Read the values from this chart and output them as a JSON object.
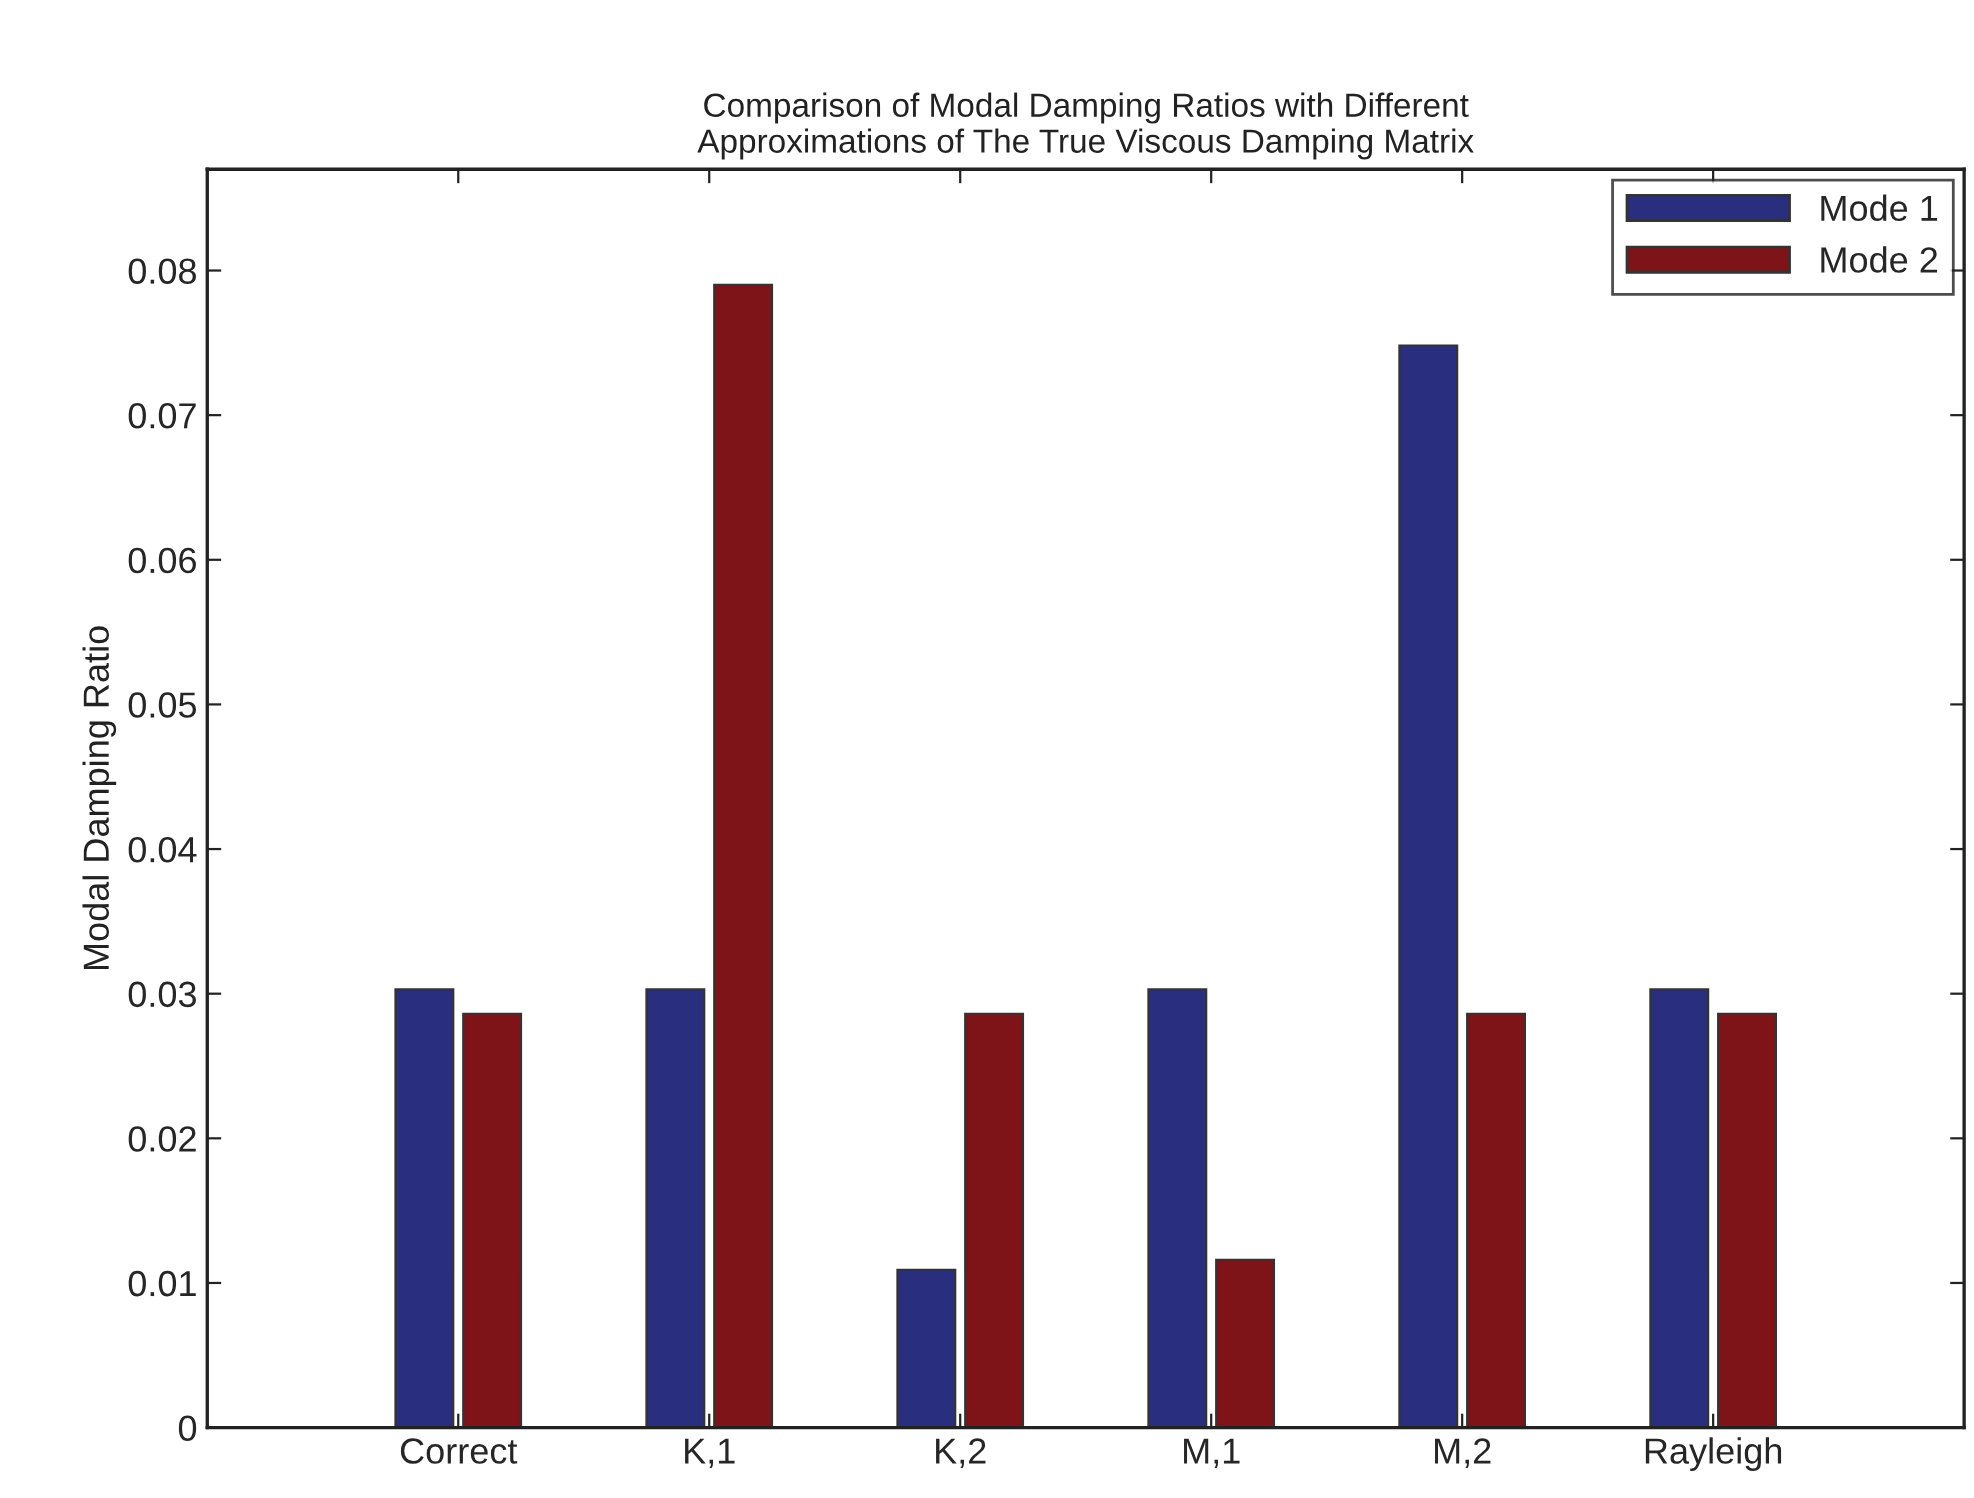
{
  "chart_data": {
    "type": "bar",
    "title": "Comparison of Modal Damping Ratios with Different\nApproximations of The True Viscous Damping Matrix",
    "ylabel": "Modal Damping Ratio",
    "categories": [
      "Correct",
      "K,1",
      "K,2",
      "M,1",
      "M,2",
      "Rayleigh"
    ],
    "series": [
      {
        "name": "Mode 1",
        "color": "#2a2e7e",
        "values": [
          0.0303,
          0.0303,
          0.0109,
          0.0303,
          0.0748,
          0.0303
        ]
      },
      {
        "name": "Mode 2",
        "color": "#7f1418",
        "values": [
          0.0286,
          0.079,
          0.0286,
          0.0116,
          0.0286,
          0.0286
        ]
      }
    ],
    "ylim": [
      0,
      0.087
    ],
    "yticks": [
      0,
      0.01,
      0.02,
      0.03,
      0.04,
      0.05,
      0.06,
      0.07,
      0.08
    ],
    "grid": false,
    "legend": "top right"
  }
}
